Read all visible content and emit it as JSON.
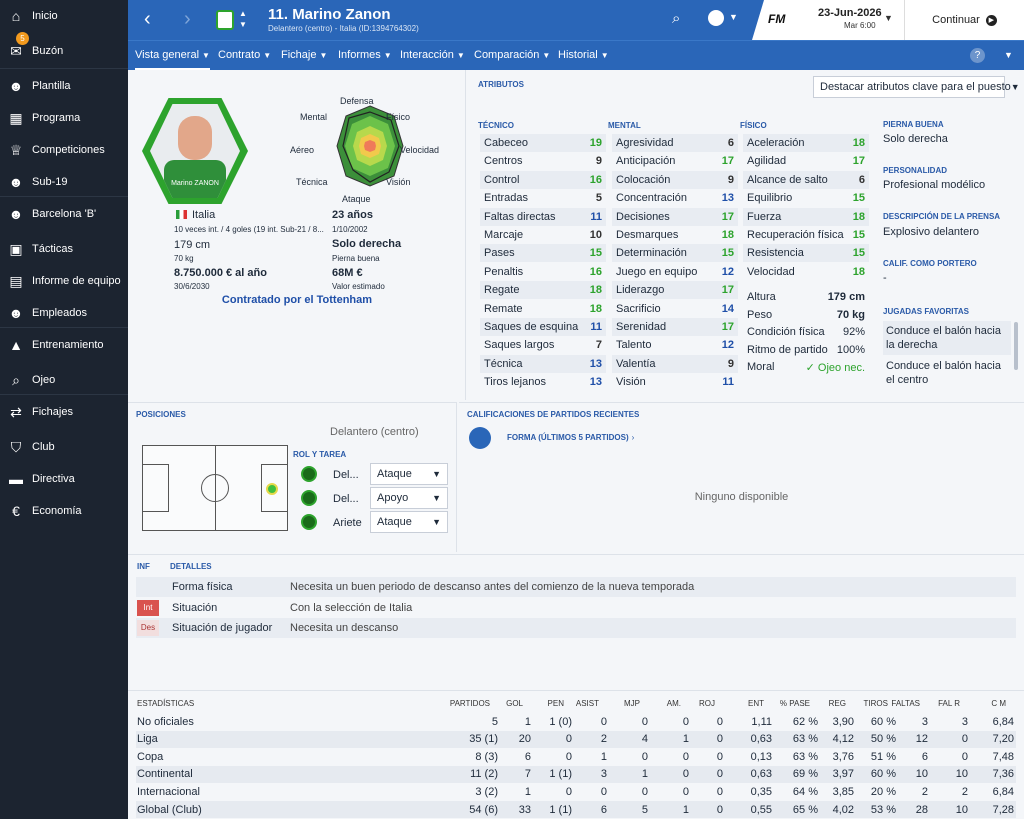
{
  "sidebar": {
    "items": [
      {
        "label": "Inicio",
        "icon": "home-icon",
        "glyph": "⌂"
      },
      {
        "label": "Buzón",
        "icon": "inbox-icon",
        "glyph": "✉",
        "badge": "5"
      },
      {
        "label": "Plantilla",
        "icon": "squad-icon",
        "glyph": "☻"
      },
      {
        "label": "Programa",
        "icon": "calendar-icon",
        "glyph": "▦"
      },
      {
        "label": "Competiciones",
        "icon": "trophy-icon",
        "glyph": "♕"
      },
      {
        "label": "Sub-19",
        "icon": "youth-icon",
        "glyph": "☻"
      },
      {
        "label": "Barcelona 'B'",
        "icon": "reserve-icon",
        "glyph": "☻"
      },
      {
        "label": "Tácticas",
        "icon": "tactics-icon",
        "glyph": "▣"
      },
      {
        "label": "Informe de equipo",
        "icon": "report-icon",
        "glyph": "▤"
      },
      {
        "label": "Empleados",
        "icon": "staff-icon",
        "glyph": "☻"
      },
      {
        "label": "Entrenamiento",
        "icon": "training-icon",
        "glyph": "▲"
      },
      {
        "label": "Ojeo",
        "icon": "scouting-icon",
        "glyph": "⌕"
      },
      {
        "label": "Fichajes",
        "icon": "transfers-icon",
        "glyph": "⇄"
      },
      {
        "label": "Club",
        "icon": "club-icon",
        "glyph": "⛉"
      },
      {
        "label": "Directiva",
        "icon": "board-icon",
        "glyph": "▬"
      },
      {
        "label": "Economía",
        "icon": "finance-icon",
        "glyph": "€"
      }
    ]
  },
  "header": {
    "title": "11. Marino Zanon",
    "subtitle": "Delantero (centro) - Italia (ID:1394764302)",
    "date": "23-Jun-2026",
    "day": "Mar 6:00",
    "continue": "Continuar",
    "fm": "FM"
  },
  "tabs": [
    {
      "label": "Vista general"
    },
    {
      "label": "Contrato"
    },
    {
      "label": "Fichaje"
    },
    {
      "label": "Informes"
    },
    {
      "label": "Interacción"
    },
    {
      "label": "Comparación"
    },
    {
      "label": "Historial"
    }
  ],
  "profile": {
    "nation": "Italia",
    "caps": "10 veces int. / 4 goles (19 int. Sub-21 / 8...",
    "age": "23 años",
    "dob": "1/10/2002",
    "height": "179 cm",
    "weight": "70 kg",
    "foot": "Solo derecha",
    "foot_label": "Pierna buena",
    "wage": "8.750.000 € al año",
    "contract_end": "30/6/2030",
    "value": "68M €",
    "value_label": "Valor estimado",
    "contracted": "Contratado por el Tottenham",
    "shirt_name": "Marino ZANON"
  },
  "radar": {
    "labels": [
      "Defensa",
      "Físico",
      "Velocidad",
      "Visión",
      "Ataque",
      "Técnica",
      "Aéreo",
      "Mental"
    ]
  },
  "attributes": {
    "title": "Atributos",
    "highlight": "Destacar atributos clave para el puesto",
    "tec_title": "Técnico",
    "men_title": "Mental",
    "fis_title": "Físico",
    "tecnico": [
      [
        "Cabeceo",
        "19",
        "g"
      ],
      [
        "Centros",
        "9",
        "n"
      ],
      [
        "Control",
        "16",
        "g"
      ],
      [
        "Entradas",
        "5",
        "n"
      ],
      [
        "Faltas directas",
        "11",
        "b"
      ],
      [
        "Marcaje",
        "10",
        "n"
      ],
      [
        "Pases",
        "15",
        "g"
      ],
      [
        "Penaltis",
        "16",
        "g"
      ],
      [
        "Regate",
        "18",
        "g"
      ],
      [
        "Remate",
        "18",
        "g"
      ],
      [
        "Saques de esquina",
        "11",
        "b"
      ],
      [
        "Saques largos",
        "7",
        "n"
      ],
      [
        "Técnica",
        "13",
        "b"
      ],
      [
        "Tiros lejanos",
        "13",
        "b"
      ]
    ],
    "mental": [
      [
        "Agresividad",
        "6",
        "n"
      ],
      [
        "Anticipación",
        "17",
        "g"
      ],
      [
        "Colocación",
        "9",
        "n"
      ],
      [
        "Concentración",
        "13",
        "b"
      ],
      [
        "Decisiones",
        "17",
        "g"
      ],
      [
        "Desmarques",
        "18",
        "g"
      ],
      [
        "Determinación",
        "15",
        "g"
      ],
      [
        "Juego en equipo",
        "12",
        "b"
      ],
      [
        "Liderazgo",
        "17",
        "g"
      ],
      [
        "Sacrificio",
        "14",
        "b"
      ],
      [
        "Serenidad",
        "17",
        "g"
      ],
      [
        "Talento",
        "12",
        "b"
      ],
      [
        "Valentía",
        "9",
        "n"
      ],
      [
        "Visión",
        "11",
        "b"
      ]
    ],
    "fisico": [
      [
        "Aceleración",
        "18",
        "g"
      ],
      [
        "Agilidad",
        "17",
        "g"
      ],
      [
        "Alcance de salto",
        "6",
        "n"
      ],
      [
        "Equilibrio",
        "15",
        "g"
      ],
      [
        "Fuerza",
        "18",
        "g"
      ],
      [
        "Recuperación física",
        "15",
        "g"
      ],
      [
        "Resistencia",
        "15",
        "g"
      ],
      [
        "Velocidad",
        "18",
        "g"
      ]
    ],
    "extra": [
      [
        "Altura",
        "179 cm"
      ],
      [
        "Peso",
        "70 kg"
      ],
      [
        "Condición física",
        "92%"
      ],
      [
        "Ritmo de partido",
        "100%"
      ],
      [
        "Moral",
        "Ojeo nec."
      ]
    ]
  },
  "right": {
    "foot_title": "Pierna buena",
    "foot": "Solo derecha",
    "pers_title": "Personalidad",
    "pers": "Profesional modélico",
    "press_title": "Descripción de la prensa",
    "press": "Explosivo delantero",
    "gk_title": "Calif. como portero",
    "gk": "-",
    "fav_title": "Jugadas favoritas",
    "fav": [
      "Conduce el balón hacia la derecha",
      "Conduce el balón hacia el centro"
    ]
  },
  "positions": {
    "title": "Posiciones",
    "pos": "Delantero (centro)",
    "role_title": "Rol y tarea",
    "roles": [
      [
        "Del...",
        "Ataque"
      ],
      [
        "Del...",
        "Apoyo"
      ],
      [
        "Ariete",
        "Ataque"
      ]
    ]
  },
  "matches": {
    "title": "Calificaciones de partidos recientes",
    "form": "Forma (últimos 5 partidos)",
    "none": "Ninguno disponible"
  },
  "details": {
    "inf": "INF",
    "title": "Detalles",
    "rows": [
      [
        "",
        "Forma física",
        "Necesita un buen periodo de descanso antes del comienzo de la nueva temporada"
      ],
      [
        "Int",
        "Situación",
        "Con la selección de Italia"
      ],
      [
        "Des",
        "Situación de jugador",
        "Necesita un descanso"
      ]
    ]
  },
  "stats": {
    "headers": [
      "Estadísticas",
      "Partidos",
      "Gol",
      "Pen",
      "Asist",
      "MJP",
      "Am.",
      "Roj",
      "Ent",
      "% Pase",
      "Reg",
      "Tiros",
      "Faltas",
      "Fal R",
      "C M"
    ],
    "rows": [
      [
        "No oficiales",
        "5",
        "1",
        "1 (0)",
        "0",
        "0",
        "0",
        "0",
        "1,11",
        "62 %",
        "3,90",
        "60 %",
        "3",
        "3",
        "6,84"
      ],
      [
        "Liga",
        "35 (1)",
        "20",
        "0",
        "2",
        "4",
        "1",
        "0",
        "0,63",
        "63 %",
        "4,12",
        "50 %",
        "12",
        "0",
        "7,20"
      ],
      [
        "Copa",
        "8 (3)",
        "6",
        "0",
        "1",
        "0",
        "0",
        "0",
        "0,13",
        "63 %",
        "3,76",
        "51 %",
        "6",
        "0",
        "7,48"
      ],
      [
        "Continental",
        "11 (2)",
        "7",
        "1 (1)",
        "3",
        "1",
        "0",
        "0",
        "0,63",
        "69 %",
        "3,97",
        "60 %",
        "10",
        "10",
        "7,36"
      ],
      [
        "Internacional",
        "3 (2)",
        "1",
        "0",
        "0",
        "0",
        "0",
        "0",
        "0,35",
        "64 %",
        "3,85",
        "20 %",
        "2",
        "2",
        "6,84"
      ],
      [
        "Global (Club)",
        "54 (6)",
        "33",
        "1 (1)",
        "6",
        "5",
        "1",
        "0",
        "0,55",
        "65 %",
        "4,02",
        "53 %",
        "28",
        "10",
        "7,28"
      ]
    ]
  }
}
